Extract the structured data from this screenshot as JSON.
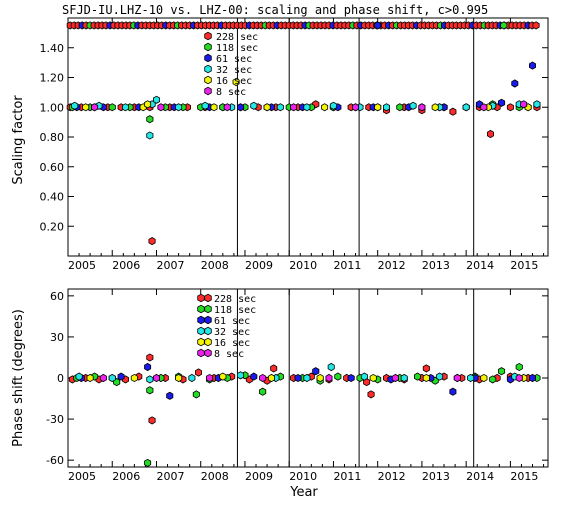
{
  "colors": {
    "p228": "#ff2a2a",
    "p118": "#22dd22",
    "p61": "#1a1aee",
    "p32": "#22e8e8",
    "p16": "#f5f500",
    "p8": "#ee22ee"
  },
  "chart_data": [
    {
      "type": "scatter",
      "title": "SFJD-IU.LHZ-10  vs. LHZ-00: scaling and phase shift, c>0.995",
      "xlabel": "",
      "ylabel": "Scaling factor",
      "xlim": [
        2005.0,
        2015.85
      ],
      "ylim": [
        0.0,
        1.6
      ],
      "x_ticks": [
        "2005",
        "2006",
        "2007",
        "2008",
        "2009",
        "2010",
        "2011",
        "2012",
        "2013",
        "2014",
        "2015"
      ],
      "y_ticks": [
        "0.20",
        "0.40",
        "0.60",
        "0.80",
        "1.00",
        "1.20",
        "1.40"
      ],
      "y_tick_values": [
        0.2,
        0.4,
        0.6,
        0.8,
        1.0,
        1.2,
        1.4
      ],
      "vertical_lines": [
        2008.83,
        2010.0,
        2011.58,
        2014.17
      ],
      "legend": [
        "228 sec",
        "118 sec",
        "61 sec",
        "32 sec",
        "16 sec",
        "8 sec"
      ],
      "series": [
        {
          "name": "228 sec",
          "color": "p228",
          "points": [
            [
              2005.05,
              1.0
            ],
            [
              2005.3,
              1.0
            ],
            [
              2005.6,
              1.0
            ],
            [
              2005.9,
              1.0
            ],
            [
              2006.2,
              1.0
            ],
            [
              2006.5,
              1.0
            ],
            [
              2006.85,
              1.0
            ],
            [
              2006.9,
              0.1
            ],
            [
              2007.3,
              1.0
            ],
            [
              2007.7,
              1.0
            ],
            [
              2008.1,
              1.0
            ],
            [
              2008.5,
              1.0
            ],
            [
              2008.9,
              1.0
            ],
            [
              2009.3,
              1.0
            ],
            [
              2009.7,
              1.0
            ],
            [
              2010.2,
              1.0
            ],
            [
              2010.6,
              1.02
            ],
            [
              2011.0,
              1.0
            ],
            [
              2011.4,
              1.0
            ],
            [
              2011.8,
              1.0
            ],
            [
              2012.2,
              0.98
            ],
            [
              2012.6,
              1.0
            ],
            [
              2013.0,
              0.98
            ],
            [
              2013.4,
              1.0
            ],
            [
              2013.7,
              0.97
            ],
            [
              2014.3,
              1.0
            ],
            [
              2014.55,
              0.82
            ],
            [
              2014.7,
              1.0
            ],
            [
              2015.0,
              1.0
            ],
            [
              2015.4,
              1.0
            ],
            [
              2015.6,
              1.0
            ]
          ]
        },
        {
          "name": "118 sec",
          "color": "p118",
          "points": [
            [
              2005.1,
              1.0
            ],
            [
              2005.5,
              1.0
            ],
            [
              2006.0,
              1.0
            ],
            [
              2006.4,
              1.0
            ],
            [
              2006.85,
              0.92
            ],
            [
              2007.2,
              1.0
            ],
            [
              2007.6,
              1.0
            ],
            [
              2008.0,
              1.0
            ],
            [
              2008.5,
              1.0
            ],
            [
              2009.0,
              1.0
            ],
            [
              2009.5,
              1.0
            ],
            [
              2010.0,
              1.0
            ],
            [
              2010.5,
              1.0
            ],
            [
              2011.0,
              1.0
            ],
            [
              2011.5,
              1.0
            ],
            [
              2012.0,
              1.0
            ],
            [
              2012.5,
              1.0
            ],
            [
              2013.0,
              1.0
            ],
            [
              2013.5,
              1.0
            ],
            [
              2014.0,
              1.0
            ],
            [
              2014.6,
              1.02
            ],
            [
              2015.2,
              1.0
            ]
          ]
        },
        {
          "name": "61 sec",
          "color": "p61",
          "points": [
            [
              2005.2,
              1.0
            ],
            [
              2005.8,
              1.0
            ],
            [
              2006.6,
              1.0
            ],
            [
              2007.4,
              1.0
            ],
            [
              2008.2,
              1.0
            ],
            [
              2008.9,
              1.0
            ],
            [
              2009.6,
              1.0
            ],
            [
              2010.3,
              1.0
            ],
            [
              2011.1,
              1.0
            ],
            [
              2011.9,
              1.0
            ],
            [
              2012.7,
              1.0
            ],
            [
              2013.5,
              1.0
            ],
            [
              2014.3,
              1.02
            ],
            [
              2014.8,
              1.03
            ],
            [
              2015.1,
              1.16
            ],
            [
              2015.5,
              1.28
            ]
          ]
        },
        {
          "name": "32 sec",
          "color": "p32",
          "points": [
            [
              2005.15,
              1.01
            ],
            [
              2005.7,
              1.01
            ],
            [
              2006.3,
              1.0
            ],
            [
              2006.85,
              0.81
            ],
            [
              2006.9,
              1.02
            ],
            [
              2007.0,
              1.05
            ],
            [
              2007.5,
              1.0
            ],
            [
              2008.1,
              1.01
            ],
            [
              2008.7,
              1.0
            ],
            [
              2009.2,
              1.01
            ],
            [
              2009.8,
              1.0
            ],
            [
              2010.4,
              1.0
            ],
            [
              2011.0,
              1.01
            ],
            [
              2011.6,
              1.0
            ],
            [
              2012.2,
              1.0
            ],
            [
              2012.8,
              1.01
            ],
            [
              2013.4,
              1.0
            ],
            [
              2014.0,
              1.0
            ],
            [
              2014.6,
              1.01
            ],
            [
              2015.2,
              1.02
            ],
            [
              2015.6,
              1.02
            ]
          ]
        },
        {
          "name": "16 sec",
          "color": "p16",
          "points": [
            [
              2005.4,
              1.0
            ],
            [
              2006.7,
              1.0
            ],
            [
              2006.8,
              1.02
            ],
            [
              2008.3,
              1.0
            ],
            [
              2008.8,
              1.17
            ],
            [
              2009.5,
              1.0
            ],
            [
              2010.8,
              1.0
            ],
            [
              2012.0,
              1.0
            ],
            [
              2013.3,
              1.0
            ],
            [
              2014.5,
              1.0
            ],
            [
              2015.4,
              1.0
            ]
          ]
        },
        {
          "name": "8 sec",
          "color": "p8",
          "points": [
            [
              2005.6,
              1.0
            ],
            [
              2007.1,
              1.0
            ],
            [
              2008.6,
              1.0
            ],
            [
              2010.1,
              1.0
            ],
            [
              2011.5,
              1.0
            ],
            [
              2013.0,
              1.0
            ],
            [
              2014.4,
              1.0
            ],
            [
              2015.3,
              1.02
            ]
          ]
        }
      ],
      "clipped_top_band": {
        "y": 1.55,
        "x_start": 2005.05,
        "x_end": 2015.6,
        "colors": [
          "p228",
          "p118",
          "p61"
        ]
      }
    },
    {
      "type": "scatter",
      "title": "",
      "xlabel": "Year",
      "ylabel": "Phase shift (degrees)",
      "xlim": [
        2005.0,
        2015.85
      ],
      "ylim": [
        -65,
        65
      ],
      "x_ticks": [
        "2005",
        "2006",
        "2007",
        "2008",
        "2009",
        "2010",
        "2011",
        "2012",
        "2013",
        "2014",
        "2015"
      ],
      "y_ticks": [
        "-60",
        "-30",
        "0",
        "30",
        "60"
      ],
      "y_tick_values": [
        -60,
        -30,
        0,
        30,
        60
      ],
      "vertical_lines": [
        2008.83,
        2010.0,
        2011.58,
        2014.17
      ],
      "legend": [
        "228 sec",
        "118 sec",
        "61 sec",
        "32 sec",
        "16 sec",
        "8 sec"
      ],
      "series": [
        {
          "name": "228 sec",
          "color": "p228",
          "points": [
            [
              2005.1,
              -1
            ],
            [
              2005.4,
              0
            ],
            [
              2005.7,
              -1
            ],
            [
              2006.0,
              0
            ],
            [
              2006.3,
              -1
            ],
            [
              2006.6,
              1
            ],
            [
              2006.85,
              15
            ],
            [
              2006.9,
              -31
            ],
            [
              2007.2,
              0
            ],
            [
              2007.6,
              -1
            ],
            [
              2007.95,
              4
            ],
            [
              2008.3,
              0
            ],
            [
              2008.7,
              1
            ],
            [
              2009.1,
              -1
            ],
            [
              2009.5,
              -2
            ],
            [
              2009.65,
              7
            ],
            [
              2010.1,
              0
            ],
            [
              2010.5,
              1
            ],
            [
              2010.9,
              -1
            ],
            [
              2011.3,
              0
            ],
            [
              2011.75,
              -3
            ],
            [
              2011.85,
              -12
            ],
            [
              2012.2,
              0
            ],
            [
              2012.6,
              -1
            ],
            [
              2013.0,
              0
            ],
            [
              2013.1,
              7
            ],
            [
              2013.5,
              1
            ],
            [
              2013.9,
              0
            ],
            [
              2014.3,
              -1
            ],
            [
              2014.7,
              0
            ],
            [
              2015.0,
              1
            ],
            [
              2015.4,
              0
            ]
          ]
        },
        {
          "name": "118 sec",
          "color": "p118",
          "points": [
            [
              2005.2,
              0
            ],
            [
              2005.6,
              1
            ],
            [
              2006.1,
              -3
            ],
            [
              2006.8,
              -62
            ],
            [
              2006.85,
              -9
            ],
            [
              2007.1,
              0
            ],
            [
              2007.5,
              1
            ],
            [
              2007.9,
              -12
            ],
            [
              2008.2,
              -1
            ],
            [
              2008.6,
              0
            ],
            [
              2009.0,
              2
            ],
            [
              2009.4,
              -10
            ],
            [
              2009.8,
              1
            ],
            [
              2010.3,
              0
            ],
            [
              2010.7,
              -2
            ],
            [
              2011.1,
              1
            ],
            [
              2011.6,
              0
            ],
            [
              2012.0,
              -1
            ],
            [
              2012.5,
              0
            ],
            [
              2012.9,
              1
            ],
            [
              2013.3,
              -2
            ],
            [
              2013.8,
              0
            ],
            [
              2014.2,
              1
            ],
            [
              2014.6,
              -1
            ],
            [
              2014.8,
              5
            ],
            [
              2015.2,
              8
            ],
            [
              2015.6,
              0
            ]
          ]
        },
        {
          "name": "61 sec",
          "color": "p61",
          "points": [
            [
              2005.3,
              0
            ],
            [
              2006.2,
              1
            ],
            [
              2006.8,
              8
            ],
            [
              2007.3,
              -13
            ],
            [
              2008.4,
              0
            ],
            [
              2009.2,
              1
            ],
            [
              2010.2,
              0
            ],
            [
              2010.6,
              5
            ],
            [
              2011.4,
              0
            ],
            [
              2012.3,
              -1
            ],
            [
              2013.2,
              0
            ],
            [
              2013.7,
              -10
            ],
            [
              2014.2,
              0
            ],
            [
              2015.0,
              -1
            ],
            [
              2015.5,
              0
            ]
          ]
        },
        {
          "name": "32 sec",
          "color": "p32",
          "points": [
            [
              2005.25,
              1
            ],
            [
              2006.0,
              0
            ],
            [
              2006.85,
              -1
            ],
            [
              2007.8,
              0
            ],
            [
              2008.9,
              2
            ],
            [
              2009.7,
              0
            ],
            [
              2010.4,
              0
            ],
            [
              2010.95,
              8
            ],
            [
              2011.7,
              1
            ],
            [
              2012.6,
              0
            ],
            [
              2013.4,
              1
            ],
            [
              2014.1,
              0
            ],
            [
              2015.1,
              1
            ]
          ]
        },
        {
          "name": "16 sec",
          "color": "p16",
          "points": [
            [
              2005.5,
              0
            ],
            [
              2006.5,
              0
            ],
            [
              2007.5,
              0
            ],
            [
              2008.5,
              1
            ],
            [
              2009.6,
              0
            ],
            [
              2010.7,
              0
            ],
            [
              2011.9,
              0
            ],
            [
              2013.1,
              0
            ],
            [
              2014.4,
              0
            ],
            [
              2015.3,
              0
            ]
          ]
        },
        {
          "name": "8 sec",
          "color": "p8",
          "points": [
            [
              2005.8,
              0
            ],
            [
              2007.0,
              0
            ],
            [
              2008.2,
              0
            ],
            [
              2009.4,
              0
            ],
            [
              2010.9,
              0
            ],
            [
              2012.4,
              0
            ],
            [
              2013.8,
              0
            ],
            [
              2015.2,
              0
            ]
          ]
        }
      ]
    }
  ]
}
